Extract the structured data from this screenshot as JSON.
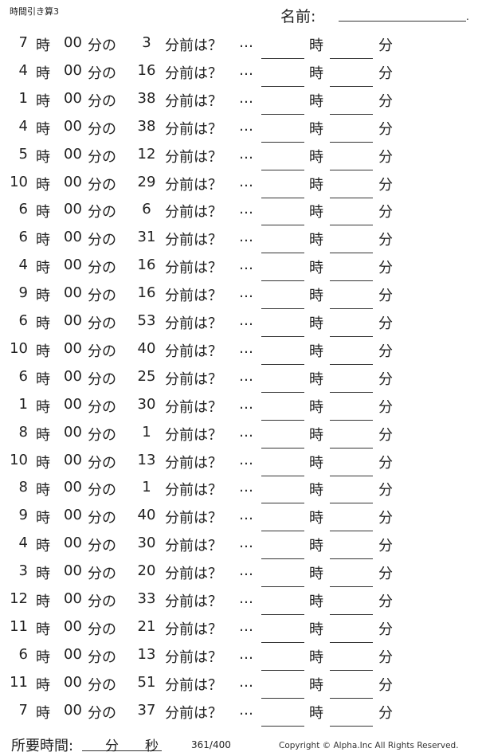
{
  "header": {
    "title": "時間引き算3",
    "name_label": "名前:",
    "name_dot": "."
  },
  "labels": {
    "hour": "時",
    "zero_min": "00",
    "min_no": "分の",
    "before": "分前は？",
    "ellipsis": "…",
    "ans_hour": "時",
    "ans_min": "分"
  },
  "problems": [
    {
      "h": "7",
      "m": "3"
    },
    {
      "h": "4",
      "m": "16"
    },
    {
      "h": "1",
      "m": "38"
    },
    {
      "h": "4",
      "m": "38"
    },
    {
      "h": "5",
      "m": "12"
    },
    {
      "h": "10",
      "m": "29"
    },
    {
      "h": "6",
      "m": "6"
    },
    {
      "h": "6",
      "m": "31"
    },
    {
      "h": "4",
      "m": "16"
    },
    {
      "h": "9",
      "m": "16"
    },
    {
      "h": "6",
      "m": "53"
    },
    {
      "h": "10",
      "m": "40"
    },
    {
      "h": "6",
      "m": "25"
    },
    {
      "h": "1",
      "m": "30"
    },
    {
      "h": "8",
      "m": "1"
    },
    {
      "h": "10",
      "m": "13"
    },
    {
      "h": "8",
      "m": "1"
    },
    {
      "h": "9",
      "m": "40"
    },
    {
      "h": "4",
      "m": "30"
    },
    {
      "h": "3",
      "m": "20"
    },
    {
      "h": "12",
      "m": "33"
    },
    {
      "h": "11",
      "m": "21"
    },
    {
      "h": "6",
      "m": "13"
    },
    {
      "h": "11",
      "m": "51"
    },
    {
      "h": "7",
      "m": "37"
    }
  ],
  "footer": {
    "time_label": "所要時間:",
    "min": "分",
    "sec": "秒",
    "page": "361/400",
    "copyright": "Copyright ©  Alpha.Inc All Rights Reserved."
  }
}
